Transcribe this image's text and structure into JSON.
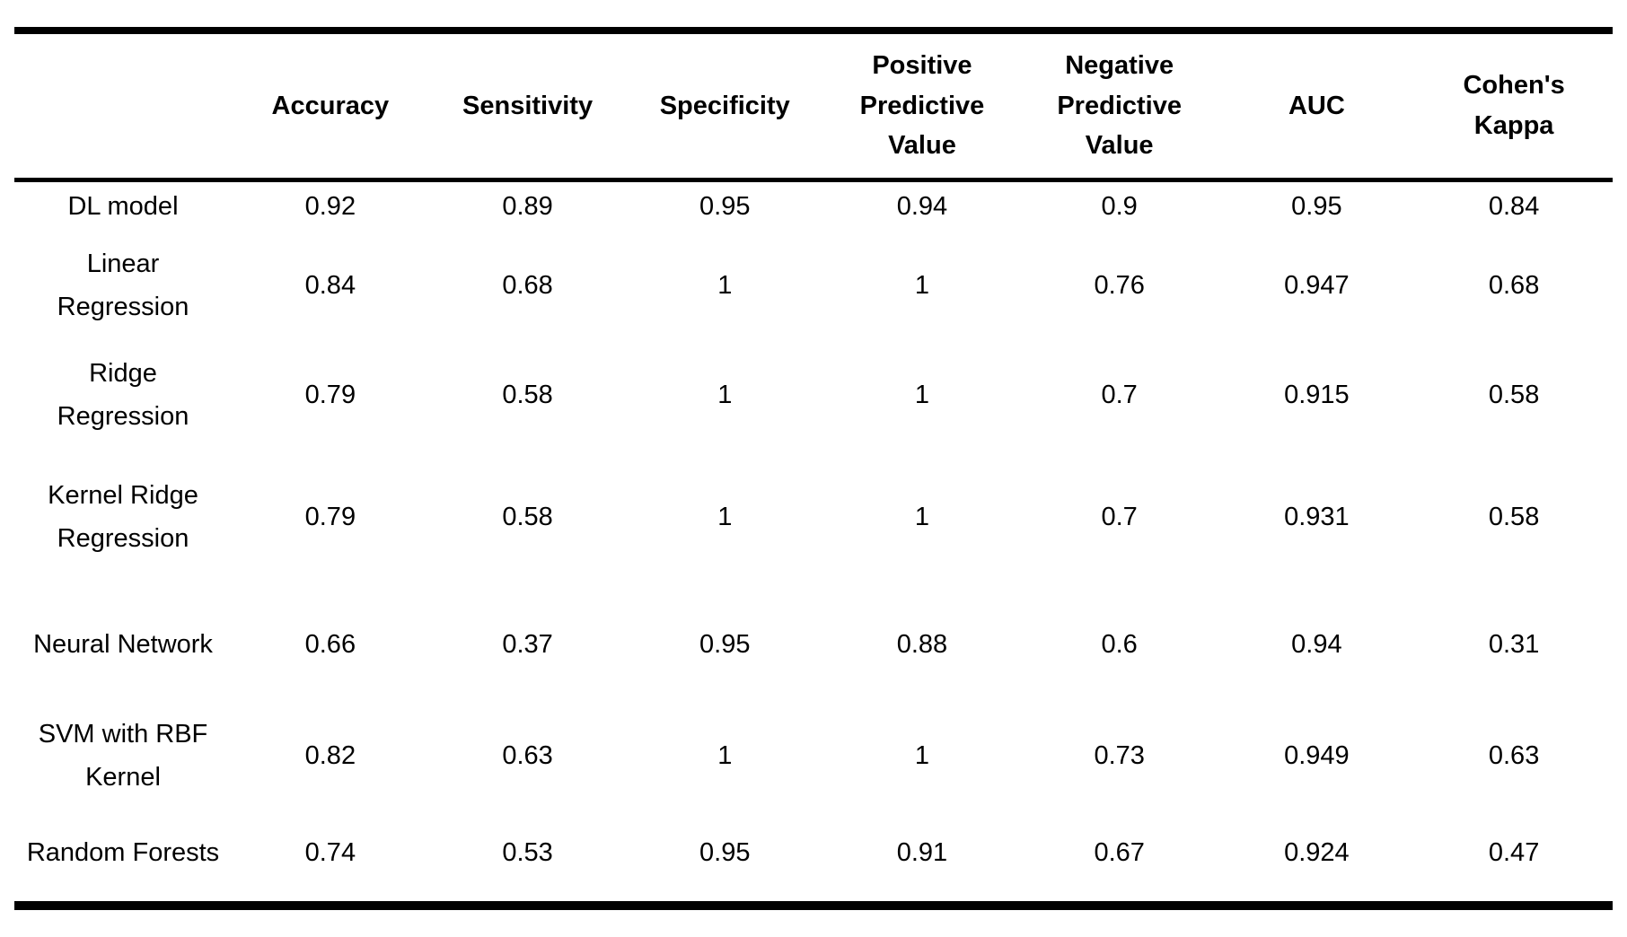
{
  "chart_data": {
    "type": "table",
    "title": "",
    "columns": [
      "",
      "Accuracy",
      "Sensitivity",
      "Specificity",
      "Positive Predictive Value",
      "Negative Predictive Value",
      "AUC",
      "Cohen's Kappa"
    ],
    "rows": [
      {
        "model": "DL model",
        "values": [
          "0.92",
          "0.89",
          "0.95",
          "0.94",
          "0.9",
          "0.95",
          "0.84"
        ]
      },
      {
        "model": "Linear Regression",
        "values": [
          "0.84",
          "0.68",
          "1",
          "1",
          "0.76",
          "0.947",
          "0.68"
        ]
      },
      {
        "model": "Ridge Regression",
        "values": [
          "0.79",
          "0.58",
          "1",
          "1",
          "0.7",
          "0.915",
          "0.58"
        ]
      },
      {
        "model": "Kernel Ridge Regression",
        "values": [
          "0.79",
          "0.58",
          "1",
          "1",
          "0.7",
          "0.931",
          "0.58"
        ]
      },
      {
        "model": "Neural Network",
        "values": [
          "0.66",
          "0.37",
          "0.95",
          "0.88",
          "0.6",
          "0.94",
          "0.31"
        ]
      },
      {
        "model": "SVM with RBF Kernel",
        "values": [
          "0.82",
          "0.63",
          "1",
          "1",
          "0.73",
          "0.949",
          "0.63"
        ]
      },
      {
        "model": "Random Forests",
        "values": [
          "0.74",
          "0.53",
          "0.95",
          "0.91",
          "0.67",
          "0.924",
          "0.47"
        ]
      }
    ],
    "layout": {
      "grid": "off",
      "rules": [
        "top",
        "below-header",
        "bottom"
      ]
    },
    "colors": {
      "text": "#000000",
      "background": "#ffffff",
      "rule": "#000000"
    }
  }
}
